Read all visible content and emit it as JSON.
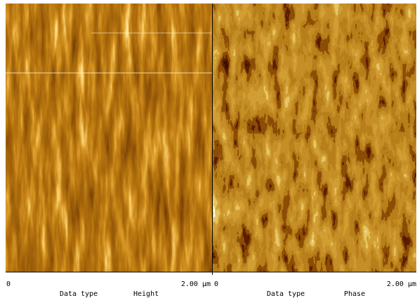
{
  "panels": [
    {
      "scale_start": "0",
      "scale_end": "2.00 µm",
      "data_type_label": "Data type",
      "data_type": "Height"
    },
    {
      "scale_start": "0",
      "scale_end": "2.00 µm",
      "data_type_label": "Data type",
      "data_type": "Phase"
    }
  ]
}
